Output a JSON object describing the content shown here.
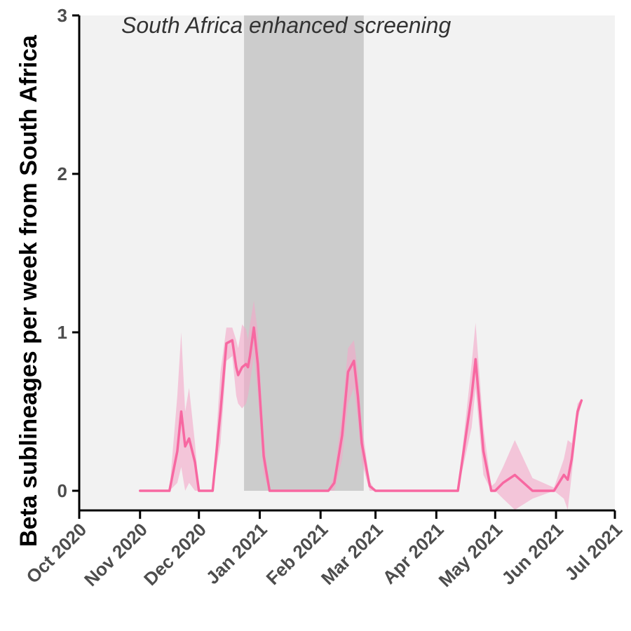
{
  "chart_data": {
    "type": "line",
    "title": "",
    "xlabel": "",
    "ylabel": "Beta sublineages per week from South Africa",
    "annotation": "South Africa enhanced screening",
    "ylim": [
      0,
      3
    ],
    "xlim": [
      "2020-10-01",
      "2021-07-01"
    ],
    "x_ticks": [
      {
        "date": "2020-10-01",
        "label": "Oct 2020"
      },
      {
        "date": "2020-11-01",
        "label": "Nov 2020"
      },
      {
        "date": "2020-12-01",
        "label": "Dec 2020"
      },
      {
        "date": "2021-01-01",
        "label": "Jan 2021"
      },
      {
        "date": "2021-02-01",
        "label": "Feb 2021"
      },
      {
        "date": "2021-03-01",
        "label": "Mar 2021"
      },
      {
        "date": "2021-04-01",
        "label": "Apr 2021"
      },
      {
        "date": "2021-05-01",
        "label": "May 2021"
      },
      {
        "date": "2021-06-01",
        "label": "Jun 2021"
      },
      {
        "date": "2021-07-01",
        "label": "Jul 2021"
      }
    ],
    "y_ticks": [
      0,
      1,
      2,
      3
    ],
    "shaded_period": {
      "start": "2020-12-24",
      "end": "2021-02-23"
    },
    "grid": false,
    "colors": {
      "line": "#f768a1",
      "ribbon": "#f4a6c8",
      "shade": "#cccccc",
      "panel": "#f2f2f2"
    },
    "series": [
      {
        "x": [
          "2020-11-01",
          "2020-11-12",
          "2020-11-16",
          "2020-11-20",
          "2020-11-22",
          "2020-11-24",
          "2020-11-26",
          "2020-11-29",
          "2020-12-01",
          "2020-12-05",
          "2020-12-08",
          "2020-12-12",
          "2020-12-15",
          "2020-12-18",
          "2020-12-20",
          "2020-12-21",
          "2020-12-23",
          "2020-12-25",
          "2020-12-26",
          "2020-12-27",
          "2020-12-29",
          "2020-12-31",
          "2021-01-03",
          "2021-01-06",
          "2021-01-08",
          "2021-01-15",
          "2021-01-25",
          "2021-02-05",
          "2021-02-08",
          "2021-02-12",
          "2021-02-15",
          "2021-02-18",
          "2021-02-20",
          "2021-02-22",
          "2021-02-26",
          "2021-03-01",
          "2021-03-15",
          "2021-04-01",
          "2021-04-12",
          "2021-04-19",
          "2021-04-21",
          "2021-04-25",
          "2021-04-29",
          "2021-05-01",
          "2021-05-05",
          "2021-05-11",
          "2021-05-20",
          "2021-05-31",
          "2021-06-05",
          "2021-06-07",
          "2021-06-09",
          "2021-06-12",
          "2021-06-14"
        ],
        "y": [
          0,
          0,
          0,
          0.25,
          0.5,
          0.28,
          0.33,
          0.18,
          0,
          0,
          0,
          0.5,
          0.93,
          0.95,
          0.78,
          0.73,
          0.78,
          0.8,
          0.78,
          0.85,
          1.03,
          0.8,
          0.22,
          0,
          0,
          0,
          0,
          0,
          0.05,
          0.35,
          0.75,
          0.82,
          0.6,
          0.3,
          0.03,
          0,
          0,
          0,
          0,
          0.6,
          0.83,
          0.25,
          0,
          0,
          0.05,
          0.1,
          0,
          0,
          0.1,
          0.07,
          0.2,
          0.5,
          0.57
        ],
        "lower": [
          0,
          0,
          0,
          0.05,
          0.15,
          0,
          0.05,
          0,
          0,
          0,
          0,
          0.3,
          0.82,
          0.85,
          0.6,
          0.55,
          0.52,
          0.55,
          0.6,
          0.68,
          0.85,
          0.62,
          0.1,
          0,
          0,
          0,
          0,
          0,
          0,
          0.2,
          0.55,
          0.65,
          0.45,
          0.18,
          0,
          0,
          0,
          0,
          0,
          0.4,
          0.65,
          0.1,
          0,
          0,
          -0.05,
          -0.12,
          -0.05,
          0,
          -0.05,
          -0.12,
          0.1,
          0.45,
          0.55
        ],
        "upper": [
          0,
          0,
          0,
          0.6,
          1.0,
          0.5,
          0.65,
          0.3,
          0,
          0,
          0,
          0.75,
          1.03,
          1.03,
          0.95,
          0.9,
          1.05,
          1.02,
          0.95,
          1.05,
          1.2,
          1.0,
          0.35,
          0,
          0,
          0,
          0,
          0,
          0.1,
          0.5,
          0.9,
          0.95,
          0.75,
          0.42,
          0.06,
          0,
          0,
          0,
          0,
          0.8,
          1.06,
          0.4,
          0.03,
          0.05,
          0.15,
          0.32,
          0.08,
          0.02,
          0.2,
          0.32,
          0.3,
          0.55,
          0.58
        ]
      }
    ]
  }
}
